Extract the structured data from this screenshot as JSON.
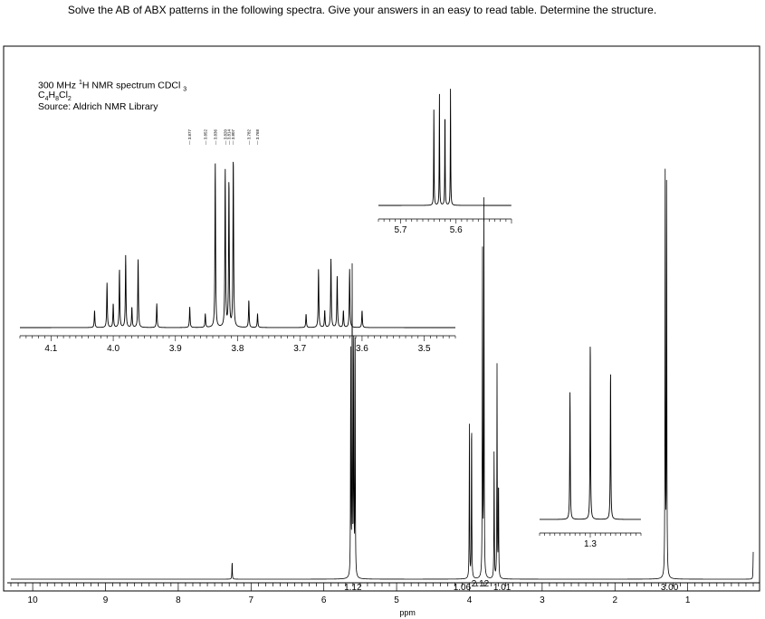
{
  "question": "Solve the AB of ABX patterns in the following spectra.  Give your answers in an easy to read table.  Determine the structure.",
  "spectrum_info": {
    "line1_pre": "300 MHz ",
    "line1_sup": "1",
    "line1_post": "H NMR spectrum CDCl",
    "line1_sub": "3",
    "formula_parts": [
      "C",
      "4",
      "H",
      "8",
      "Cl",
      "2"
    ],
    "source": "Source: Aldrich NMR Library"
  },
  "main_axis": {
    "ticks": [
      "10",
      "9",
      "8",
      "7",
      "6",
      "5",
      "4",
      "3",
      "2",
      "1"
    ],
    "unit": "ppm"
  },
  "integrals": [
    "1.12",
    "1.06",
    "2.12",
    "1.01",
    "3.00"
  ],
  "inset_left": {
    "ticks": [
      "4.1",
      "4.0",
      "3.9",
      "3.8",
      "3.7",
      "3.6",
      "3.5"
    ],
    "peak_labels": [
      "3.877",
      "3.852",
      "3.836",
      "3.820",
      "3.814",
      "3.807",
      "3.782",
      "3.768"
    ]
  },
  "inset_vinyl": {
    "ticks": [
      "5.7",
      "5.6"
    ]
  },
  "inset_methyl": {
    "ticks": [
      "1.3"
    ]
  },
  "chart_data": {
    "type": "line",
    "title": "",
    "xlabel": "ppm",
    "xlim": [
      10.3,
      0.1
    ],
    "x_direction": "reversed",
    "grid": false,
    "main_peaks": [
      {
        "ppm": 7.26,
        "rel_height": 0.05
      },
      {
        "ppm": 5.63,
        "rel_height": 0.62
      },
      {
        "ppm": 5.61,
        "rel_height": 0.8
      },
      {
        "ppm": 5.59,
        "rel_height": 0.7
      },
      {
        "ppm": 5.57,
        "rel_height": 0.6
      },
      {
        "ppm": 4.0,
        "rel_height": 0.4
      },
      {
        "ppm": 3.97,
        "rel_height": 0.46
      },
      {
        "ppm": 3.82,
        "rel_height": 0.88
      },
      {
        "ppm": 3.8,
        "rel_height": 1.0
      },
      {
        "ppm": 3.66,
        "rel_height": 0.34
      },
      {
        "ppm": 3.62,
        "rel_height": 0.55
      },
      {
        "ppm": 3.6,
        "rel_height": 0.28
      },
      {
        "ppm": 1.31,
        "rel_height": 1.04
      },
      {
        "ppm": 1.29,
        "rel_height": 1.12
      },
      {
        "ppm": 0.1,
        "rel_height": 0.07
      }
    ],
    "integrals": [
      {
        "ppm": 5.6,
        "value": 1.12
      },
      {
        "ppm": 4.0,
        "value": 1.06
      },
      {
        "ppm": 3.8,
        "value": 2.12
      },
      {
        "ppm": 3.6,
        "value": 1.01
      },
      {
        "ppm": 1.3,
        "value": 3.0
      }
    ],
    "inset_left_peaks": [
      {
        "ppm": 4.03,
        "rel_height": 0.05
      },
      {
        "ppm": 4.01,
        "rel_height": 0.13
      },
      {
        "ppm": 4.0,
        "rel_height": 0.07
      },
      {
        "ppm": 3.99,
        "rel_height": 0.17
      },
      {
        "ppm": 3.98,
        "rel_height": 0.21
      },
      {
        "ppm": 3.97,
        "rel_height": 0.06
      },
      {
        "ppm": 3.96,
        "rel_height": 0.2
      },
      {
        "ppm": 3.93,
        "rel_height": 0.07
      },
      {
        "ppm": 3.877,
        "rel_height": 0.06
      },
      {
        "ppm": 3.852,
        "rel_height": 0.04
      },
      {
        "ppm": 3.836,
        "rel_height": 0.48
      },
      {
        "ppm": 3.82,
        "rel_height": 0.46
      },
      {
        "ppm": 3.814,
        "rel_height": 0.43
      },
      {
        "ppm": 3.807,
        "rel_height": 0.5
      },
      {
        "ppm": 3.782,
        "rel_height": 0.08
      },
      {
        "ppm": 3.768,
        "rel_height": 0.04
      },
      {
        "ppm": 3.69,
        "rel_height": 0.04
      },
      {
        "ppm": 3.67,
        "rel_height": 0.17
      },
      {
        "ppm": 3.66,
        "rel_height": 0.05
      },
      {
        "ppm": 3.65,
        "rel_height": 0.2
      },
      {
        "ppm": 3.64,
        "rel_height": 0.15
      },
      {
        "ppm": 3.63,
        "rel_height": 0.05
      },
      {
        "ppm": 3.62,
        "rel_height": 0.17
      },
      {
        "ppm": 3.6,
        "rel_height": 0.05
      }
    ],
    "inset_vinyl_peaks": [
      {
        "ppm": 5.64,
        "rel_height": 0.55
      },
      {
        "ppm": 5.63,
        "rel_height": 0.62
      },
      {
        "ppm": 5.62,
        "rel_height": 0.55
      },
      {
        "ppm": 5.61,
        "rel_height": 0.65
      }
    ],
    "inset_methyl_peaks": [
      {
        "ppm": 1.32,
        "rel_height": 0.72
      },
      {
        "ppm": 1.3,
        "rel_height": 1.0
      },
      {
        "ppm": 1.28,
        "rel_height": 0.84
      }
    ]
  }
}
